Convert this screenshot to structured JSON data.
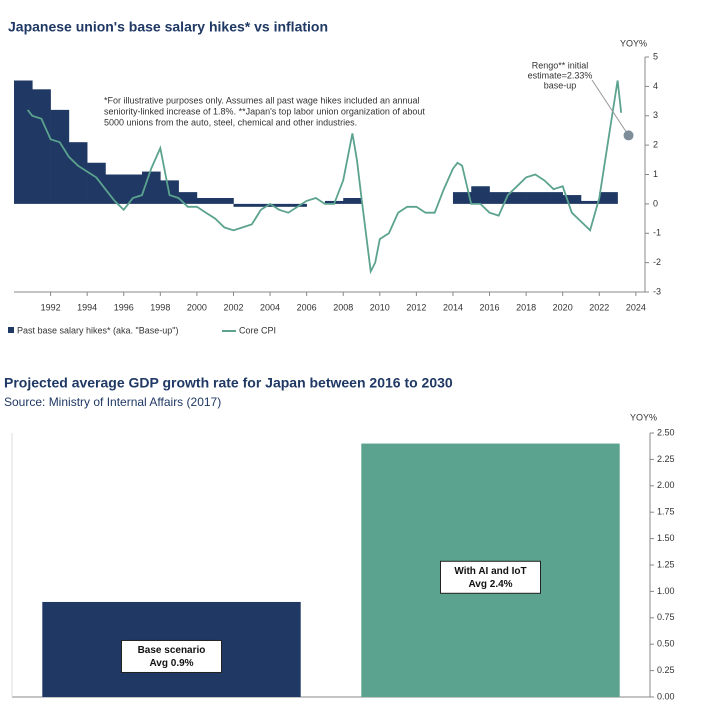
{
  "chart_data": [
    {
      "type": "combo",
      "title": "Japanese union's base salary hikes* vs inflation",
      "y_label": "YOY%",
      "xlim": [
        1990,
        2024.5
      ],
      "xticks": [
        1992,
        1994,
        1996,
        1998,
        2000,
        2002,
        2004,
        2006,
        2008,
        2010,
        2012,
        2014,
        2016,
        2018,
        2020,
        2022,
        2024
      ],
      "ylim": [
        -3,
        5
      ],
      "yticks": [
        -3,
        -2,
        -1,
        0,
        1,
        2,
        3,
        4,
        5
      ],
      "footnote": [
        "*For illustrative purposes only. Assumes all past wage hikes included an annual",
        "seniority-linked increase of 1.8%. **Japan's top labor union organization of about",
        "5000 unions from the auto, steel, chemical and other industries."
      ],
      "annotation": {
        "text": [
          "Rengo** initial",
          "estimate=2.33%",
          "base-up"
        ],
        "x": 2023.6,
        "y": 2.33,
        "color": "#7f8c9a"
      },
      "series": [
        {
          "name": "Past base salary hikes* (aka. \"Base-up\")",
          "type": "bar",
          "color": "#1f3864",
          "x": [
            1990,
            1991,
            1992,
            1993,
            1994,
            1995,
            1996,
            1997,
            1998,
            1999,
            2000,
            2001,
            2002,
            2003,
            2004,
            2005,
            2006,
            2007,
            2008,
            2009,
            2010,
            2011,
            2012,
            2013,
            2014,
            2015,
            2016,
            2017,
            2018,
            2019,
            2020,
            2021,
            2022
          ],
          "values": [
            4.2,
            3.9,
            3.2,
            2.1,
            1.4,
            1.0,
            1.0,
            1.1,
            0.8,
            0.4,
            0.2,
            0.2,
            -0.1,
            -0.1,
            -0.1,
            -0.1,
            0.0,
            0.1,
            0.2,
            0.0,
            0.0,
            0.0,
            0.0,
            0.0,
            0.4,
            0.6,
            0.4,
            0.4,
            0.4,
            0.4,
            0.3,
            0.1,
            0.4
          ]
        },
        {
          "name": "Core CPI",
          "type": "line",
          "color": "#5ba38e",
          "x": [
            1990.75,
            1991.0,
            1991.5,
            1992.0,
            1992.5,
            1993.0,
            1993.5,
            1994.0,
            1994.5,
            1995.0,
            1995.5,
            1996.0,
            1996.5,
            1997.0,
            1997.5,
            1998.0,
            1998.5,
            1999.0,
            1999.5,
            2000.0,
            2000.5,
            2001.0,
            2001.5,
            2002.0,
            2002.5,
            2003.0,
            2003.5,
            2004.0,
            2004.5,
            2005.0,
            2005.5,
            2006.0,
            2006.5,
            2007.0,
            2007.5,
            2008.0,
            2008.5,
            2008.75,
            2009.0,
            2009.5,
            2009.75,
            2010.0,
            2010.5,
            2011.0,
            2011.5,
            2012.0,
            2012.5,
            2013.0,
            2013.5,
            2014.0,
            2014.25,
            2014.5,
            2015.0,
            2015.5,
            2016.0,
            2016.5,
            2017.0,
            2017.5,
            2018.0,
            2018.5,
            2019.0,
            2019.5,
            2020.0,
            2020.5,
            2021.0,
            2021.5,
            2022.0,
            2022.5,
            2023.0,
            2023.2
          ],
          "values": [
            3.2,
            3.0,
            2.9,
            2.2,
            2.1,
            1.6,
            1.3,
            1.1,
            0.9,
            0.5,
            0.1,
            -0.2,
            0.2,
            0.3,
            1.2,
            1.9,
            0.3,
            0.2,
            -0.1,
            -0.1,
            -0.3,
            -0.5,
            -0.8,
            -0.9,
            -0.8,
            -0.7,
            -0.2,
            0.0,
            -0.2,
            -0.3,
            -0.1,
            0.1,
            0.2,
            0.0,
            0.0,
            0.8,
            2.4,
            1.5,
            0.2,
            -2.3,
            -2.0,
            -1.2,
            -1.0,
            -0.3,
            -0.1,
            -0.1,
            -0.3,
            -0.3,
            0.5,
            1.2,
            1.4,
            1.3,
            0.0,
            0.0,
            -0.3,
            -0.4,
            0.3,
            0.6,
            0.9,
            1.0,
            0.8,
            0.5,
            0.6,
            -0.3,
            -0.6,
            -0.9,
            0.2,
            2.2,
            4.2,
            3.1
          ]
        }
      ]
    },
    {
      "type": "bar",
      "title": "Projected average GDP growth rate for Japan between 2016 to 2030",
      "subtitle": "Source: Ministry of Internal Affairs (2017)",
      "y_label": "YOY%",
      "categories": [
        "Base scenario",
        "With AI and IoT"
      ],
      "values": [
        0.9,
        2.4
      ],
      "value_labels": [
        "Avg 0.9%",
        "Avg 2.4%"
      ],
      "colors": [
        "#1f3864",
        "#5ba38e"
      ],
      "ylim": [
        0,
        2.5
      ],
      "yticks": [
        {
          "value": 0,
          "label": "0.00"
        },
        {
          "value": 0.25,
          "label": "0.25"
        },
        {
          "value": 0.5,
          "label": "0.50"
        },
        {
          "value": 0.75,
          "label": "0.75"
        },
        {
          "value": 1,
          "label": "1.00"
        },
        {
          "value": 1.25,
          "label": "1.25"
        },
        {
          "value": 1.5,
          "label": "1.50"
        },
        {
          "value": 1.75,
          "label": "1.75"
        },
        {
          "value": 2,
          "label": "2.00"
        },
        {
          "value": 2.25,
          "label": "2.25"
        },
        {
          "value": 2.5,
          "label": "2.50"
        }
      ]
    }
  ]
}
